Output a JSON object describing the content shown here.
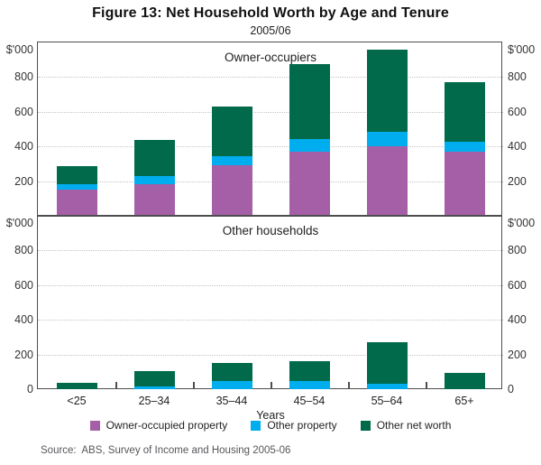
{
  "title": "Figure 13: Net Household Worth by Age and Tenure",
  "subtitle": "2005/06",
  "source": "Source:  ABS, Survey of Income and Housing 2005-06",
  "axis": {
    "unit_label": "$'000",
    "x_label": "Years",
    "tick_values": [
      800,
      600,
      400,
      200
    ],
    "zero_label": "0",
    "ylim": [
      0,
      1000
    ]
  },
  "colors": {
    "owner_occupied_property": "#a45fa6",
    "other_property": "#00aeef",
    "other_net_worth": "#016a4b",
    "gridline": "#c3c3c3",
    "frame": "#4e4e50"
  },
  "legend": {
    "items": [
      {
        "label": "Owner-occupied property",
        "color": "#a45fa6"
      },
      {
        "label": "Other property",
        "color": "#00aeef"
      },
      {
        "label": "Other net worth",
        "color": "#016a4b"
      }
    ]
  },
  "chart_data": [
    {
      "type": "bar",
      "stacked": true,
      "panel_label": "Owner-occupiers",
      "categories": [
        "<25",
        "25–34",
        "35–44",
        "45–54",
        "55–64",
        "65+"
      ],
      "series": [
        {
          "name": "Owner-occupied property",
          "color": "#a45fa6",
          "values": [
            150,
            180,
            290,
            370,
            400,
            370
          ]
        },
        {
          "name": "Other property",
          "color": "#00aeef",
          "values": [
            30,
            50,
            55,
            75,
            85,
            55
          ]
        },
        {
          "name": "Other net worth",
          "color": "#016a4b",
          "values": [
            105,
            210,
            285,
            430,
            475,
            345
          ]
        }
      ],
      "totals": [
        285,
        440,
        630,
        875,
        960,
        770
      ],
      "ylabel": "$'000",
      "ylim": [
        0,
        1000
      ],
      "grid": true,
      "legend_position": "bottom"
    },
    {
      "type": "bar",
      "stacked": true,
      "panel_label": "Other households",
      "categories": [
        "<25",
        "25–34",
        "35–44",
        "45–54",
        "55–64",
        "65+"
      ],
      "series": [
        {
          "name": "Owner-occupied property",
          "color": "#a45fa6",
          "values": [
            0,
            0,
            0,
            0,
            0,
            0
          ]
        },
        {
          "name": "Other property",
          "color": "#00aeef",
          "values": [
            0,
            15,
            45,
            45,
            30,
            0
          ]
        },
        {
          "name": "Other net worth",
          "color": "#016a4b",
          "values": [
            35,
            90,
            105,
            115,
            240,
            95
          ]
        }
      ],
      "totals": [
        35,
        105,
        150,
        160,
        270,
        95
      ],
      "ylabel": "$'000",
      "ylim": [
        0,
        1000
      ],
      "grid": true,
      "legend_position": "bottom"
    }
  ]
}
